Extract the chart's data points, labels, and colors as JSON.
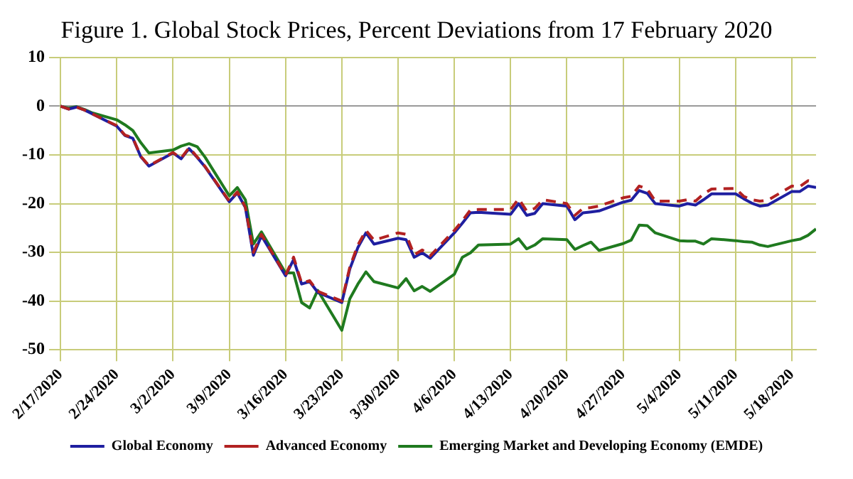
{
  "chart_data": {
    "type": "line",
    "title": "Figure 1. Global Stock Prices, Percent Deviations from 17 February 2020",
    "x": [
      "2020-02-17",
      "2020-02-18",
      "2020-02-19",
      "2020-02-20",
      "2020-02-21",
      "2020-02-24",
      "2020-02-25",
      "2020-02-26",
      "2020-02-27",
      "2020-02-28",
      "2020-03-02",
      "2020-03-03",
      "2020-03-04",
      "2020-03-05",
      "2020-03-06",
      "2020-03-09",
      "2020-03-10",
      "2020-03-11",
      "2020-03-12",
      "2020-03-13",
      "2020-03-16",
      "2020-03-17",
      "2020-03-18",
      "2020-03-19",
      "2020-03-20",
      "2020-03-23",
      "2020-03-24",
      "2020-03-25",
      "2020-03-26",
      "2020-03-27",
      "2020-03-30",
      "2020-03-31",
      "2020-04-01",
      "2020-04-02",
      "2020-04-03",
      "2020-04-06",
      "2020-04-07",
      "2020-04-08",
      "2020-04-09",
      "2020-04-13",
      "2020-04-14",
      "2020-04-15",
      "2020-04-16",
      "2020-04-17",
      "2020-04-20",
      "2020-04-21",
      "2020-04-22",
      "2020-04-23",
      "2020-04-24",
      "2020-04-27",
      "2020-04-28",
      "2020-04-29",
      "2020-04-30",
      "2020-05-01",
      "2020-05-04",
      "2020-05-05",
      "2020-05-06",
      "2020-05-07",
      "2020-05-08",
      "2020-05-11",
      "2020-05-12",
      "2020-05-13",
      "2020-05-14",
      "2020-05-15",
      "2020-05-18",
      "2020-05-19",
      "2020-05-20",
      "2020-05-21"
    ],
    "series": [
      {
        "name": "Global Economy",
        "color": "#1f1fa0",
        "line_style": "solid",
        "values": [
          0,
          -0.6,
          -0.2,
          -0.8,
          -1.6,
          -4.1,
          -6.0,
          -6.6,
          -10.4,
          -12.3,
          -9.6,
          -10.8,
          -8.7,
          -10.5,
          -12.5,
          -19.6,
          -17.8,
          -20.8,
          -30.6,
          -26.6,
          -34.8,
          -31.5,
          -36.5,
          -36,
          -38.2,
          -40.3,
          -33.4,
          -29,
          -26,
          -28.3,
          -27.1,
          -27.4,
          -31,
          -30.1,
          -31.2,
          -26,
          -24,
          -21.9,
          -21.8,
          -22.2,
          -20,
          -22.4,
          -22,
          -20,
          -20.5,
          -23.3,
          -21.9,
          -21.7,
          -21.5,
          -19.7,
          -19.3,
          -17.3,
          -17.9,
          -20,
          -20.5,
          -20,
          -20.3,
          -19.2,
          -18,
          -18,
          -19,
          -19.9,
          -20.5,
          -20.3,
          -17.5,
          -17.5,
          -16.4,
          -16.7
        ]
      },
      {
        "name": "Advanced Economy",
        "color": "#b22222",
        "line_style": "dashed",
        "values": [
          0,
          -0.6,
          -0.2,
          -0.8,
          -1.6,
          -4.0,
          -5.9,
          -6.5,
          -10.3,
          -12.2,
          -9.5,
          -10.7,
          -8.5,
          -10.4,
          -12.4,
          -19.5,
          -17.6,
          -20.7,
          -30.0,
          -26.3,
          -34.7,
          -31.0,
          -36.3,
          -35.8,
          -38,
          -40.0,
          -33,
          -28.5,
          -25.5,
          -27.5,
          -26,
          -26.3,
          -30.5,
          -29.5,
          -30.7,
          -25.5,
          -23.5,
          -21.3,
          -21.2,
          -21.2,
          -19,
          -21.5,
          -21,
          -19.2,
          -20,
          -22.4,
          -21,
          -20.8,
          -20.5,
          -18.8,
          -18.5,
          -16.4,
          -17,
          -19.5,
          -19.5,
          -19.2,
          -19.5,
          -18,
          -17,
          -16.9,
          -18.5,
          -19.2,
          -19.5,
          -19.3,
          -16.4,
          -16.5,
          -15.3,
          -15.6
        ]
      },
      {
        "name": "Emerging Market and Developing Economy (EMDE)",
        "color": "#1f7a1f",
        "line_style": "solid",
        "values": [
          0,
          -0.4,
          -0.1,
          -0.7,
          -1.4,
          -2.8,
          -3.8,
          -5.0,
          -7.5,
          -9.6,
          -9.0,
          -8.2,
          -7.7,
          -8.3,
          -10.5,
          -18.4,
          -16.7,
          -19.2,
          -28.3,
          -25.8,
          -34.2,
          -34.2,
          -40.3,
          -41.4,
          -37.8,
          -46,
          -39.5,
          -36.5,
          -34,
          -36,
          -37.3,
          -35.4,
          -37.9,
          -37,
          -38,
          -34.5,
          -31,
          -30.1,
          -28.5,
          -28.3,
          -27.2,
          -29.3,
          -28.5,
          -27.2,
          -27.4,
          -29.4,
          -28.6,
          -27.9,
          -29.6,
          -28.2,
          -27.5,
          -24.4,
          -24.5,
          -26,
          -27.6,
          -27.7,
          -27.7,
          -28.3,
          -27.2,
          -27.6,
          -27.8,
          -27.9,
          -28.5,
          -28.8,
          -27.6,
          -27.3,
          -26.5,
          -25.2
        ]
      }
    ],
    "xlim": [
      "2020-02-17",
      "2020-05-21"
    ],
    "xticks": [
      {
        "value": "2020-02-17",
        "label": "2/17/2020"
      },
      {
        "value": "2020-02-24",
        "label": "2/24/2020"
      },
      {
        "value": "2020-03-02",
        "label": "3/2/2020"
      },
      {
        "value": "2020-03-09",
        "label": "3/9/2020"
      },
      {
        "value": "2020-03-16",
        "label": "3/16/2020"
      },
      {
        "value": "2020-03-23",
        "label": "3/23/2020"
      },
      {
        "value": "2020-03-30",
        "label": "3/30/2020"
      },
      {
        "value": "2020-04-06",
        "label": "4/6/2020"
      },
      {
        "value": "2020-04-13",
        "label": "4/13/2020"
      },
      {
        "value": "2020-04-20",
        "label": "4/20/2020"
      },
      {
        "value": "2020-04-27",
        "label": "4/27/2020"
      },
      {
        "value": "2020-05-04",
        "label": "5/4/2020"
      },
      {
        "value": "2020-05-11",
        "label": "5/11/2020"
      },
      {
        "value": "2020-05-18",
        "label": "5/18/2020"
      }
    ],
    "ylim": [
      -50,
      10
    ],
    "yticks": [
      -50,
      -40,
      -30,
      -20,
      -10,
      0,
      10
    ],
    "grid": true,
    "legend": "bottom",
    "marker": "none"
  }
}
